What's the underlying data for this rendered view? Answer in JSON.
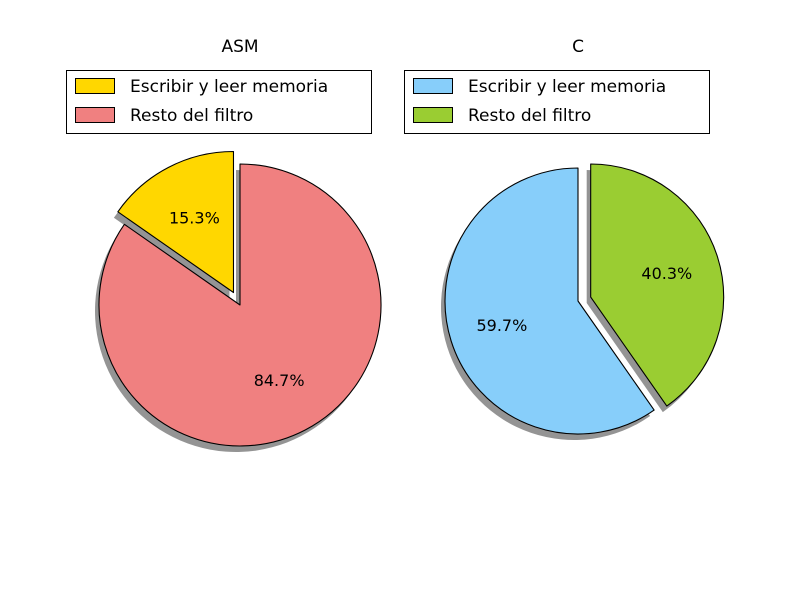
{
  "chart_data": [
    {
      "type": "pie",
      "title": "ASM",
      "slices": [
        {
          "label": "Escribir y leer memoria",
          "value": 15.3,
          "pct_label": "15.3%",
          "color": "#FFD700",
          "exploded": true
        },
        {
          "label": "Resto del filtro",
          "value": 84.7,
          "pct_label": "84.7%",
          "color": "#F08080",
          "exploded": false
        }
      ],
      "start_angle_deg": 90,
      "direction": "counterclockwise",
      "shadow": true,
      "legend_position": "top"
    },
    {
      "type": "pie",
      "title": "C",
      "slices": [
        {
          "label": "Escribir y leer memoria",
          "value": 59.7,
          "pct_label": "59.7%",
          "color": "#87CEFA",
          "exploded": false
        },
        {
          "label": "Resto del filtro",
          "value": 40.3,
          "pct_label": "40.3%",
          "color": "#9ACD32",
          "exploded": true
        }
      ],
      "start_angle_deg": 90,
      "direction": "counterclockwise",
      "shadow": true,
      "legend_position": "top"
    }
  ]
}
